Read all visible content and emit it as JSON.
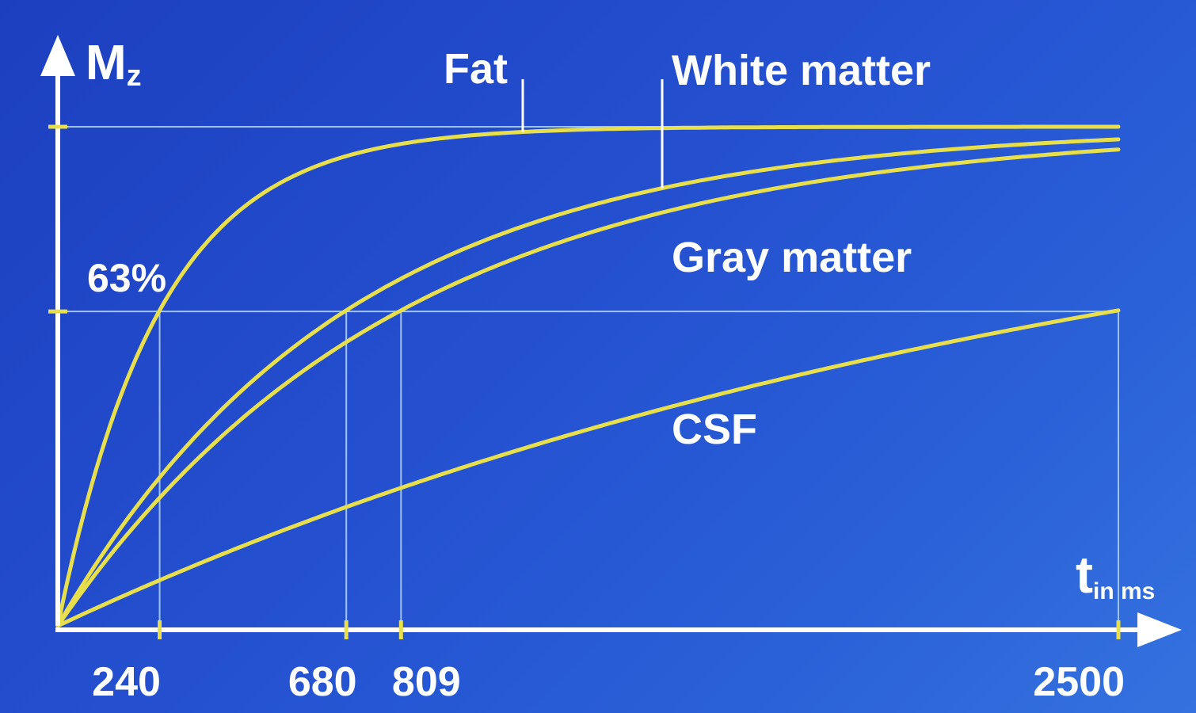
{
  "chart_data": {
    "type": "line",
    "ylabel_main": "M",
    "ylabel_sub": "z",
    "xlabel_main": "t",
    "xlabel_sub": "in ms",
    "xlim": [
      0,
      2500
    ],
    "ylim": [
      0,
      1
    ],
    "threshold": {
      "label": "63%",
      "value": 0.63
    },
    "x_ticks": [
      240,
      680,
      809,
      2500
    ],
    "colors": {
      "curve": "#e8df4c",
      "axis": "#ffffff",
      "grid": "#9fc3f2",
      "tick": "#e8df4c"
    },
    "series": [
      {
        "name": "Fat",
        "t1": 240
      },
      {
        "name": "White matter",
        "t1": 680
      },
      {
        "name": "Gray matter",
        "t1": 809
      },
      {
        "name": "CSF",
        "t1": 2500
      }
    ]
  }
}
